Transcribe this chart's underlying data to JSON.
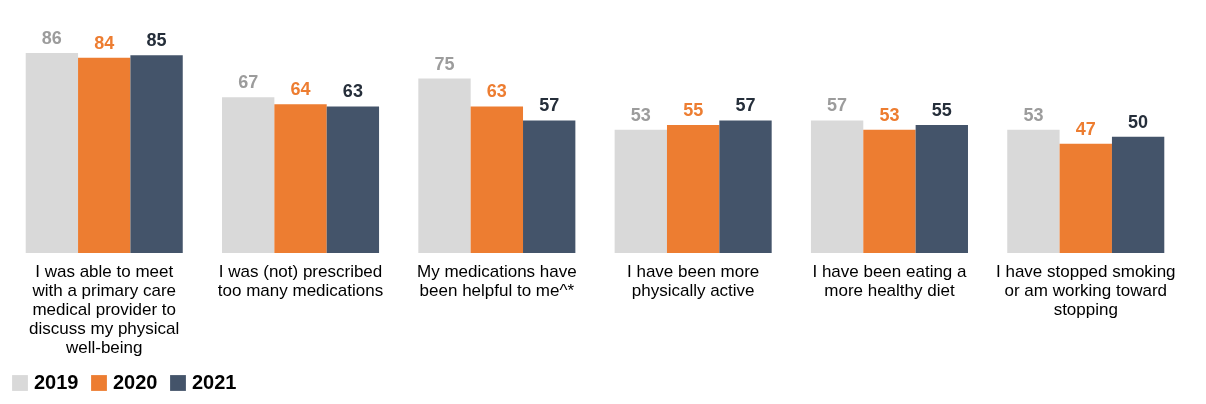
{
  "chart_data": {
    "type": "bar",
    "categories": [
      "I was able to meet with a primary care medical provider to discuss my physical well-being",
      "I was (not) prescribed too many medications",
      "My medications have been helpful to me^*",
      "I have been more physically active",
      "I have been eating a more healthy diet",
      "I have stopped smoking or am working toward stopping"
    ],
    "series": [
      {
        "name": "2019",
        "color": "#d9d9d9",
        "values": [
          86,
          67,
          75,
          53,
          57,
          53
        ]
      },
      {
        "name": "2020",
        "color": "#ed7d31",
        "values": [
          84,
          64,
          63,
          55,
          53,
          47
        ]
      },
      {
        "name": "2021",
        "color": "#44546a",
        "values": [
          85,
          63,
          57,
          57,
          55,
          50
        ]
      }
    ],
    "data_labels": true,
    "legend": "bottom",
    "grid": false
  }
}
